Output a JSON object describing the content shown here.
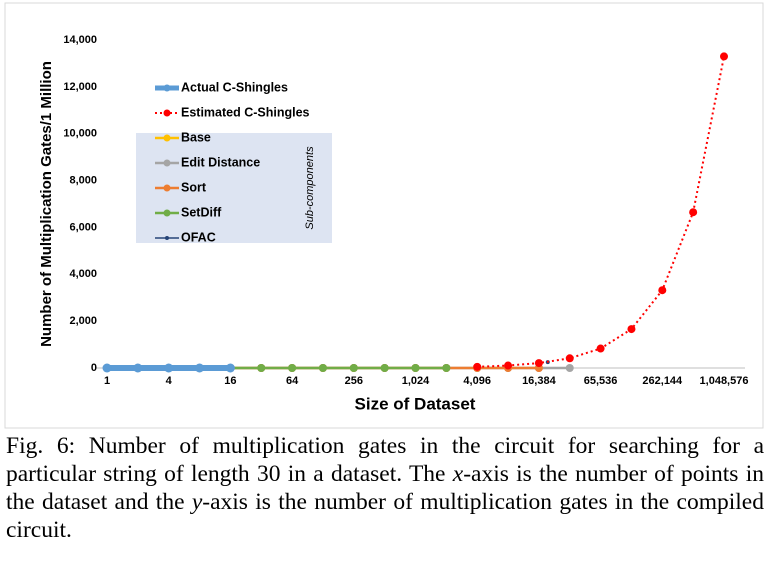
{
  "chart_data": {
    "type": "line",
    "x_label": "Size of Dataset",
    "y_label": "Number of Multiplication Gates/1 Million",
    "x_scale": "log2",
    "xlim": [
      1,
      1048576
    ],
    "xticks": [
      1,
      4,
      16,
      64,
      256,
      {
        "value": 1024,
        "label": "1,024"
      },
      {
        "value": 4096,
        "label": "4,096"
      },
      {
        "value": 16384,
        "label": "16,384"
      },
      {
        "value": 65536,
        "label": "65,536"
      },
      {
        "value": 262144,
        "label": "262,144"
      },
      {
        "value": 1048576,
        "label": "1,048,576"
      }
    ],
    "ylim": [
      0,
      14000
    ],
    "yticks": [
      0,
      {
        "value": 2000,
        "label": "2,000"
      },
      {
        "value": 4000,
        "label": "4,000"
      },
      {
        "value": 6000,
        "label": "6,000"
      },
      {
        "value": 8000,
        "label": "8,000"
      },
      {
        "value": 10000,
        "label": "10,000"
      },
      {
        "value": 12000,
        "label": "12,000"
      },
      {
        "value": 14000,
        "label": "14,000"
      }
    ],
    "legend_position": "upper left",
    "legend_note": "Sub-components",
    "series": [
      {
        "name": "Actual C-Shingles",
        "color": "#5b9bd5",
        "x": [
          1,
          2,
          4,
          8,
          16
        ],
        "values": [
          0,
          0,
          0,
          0,
          0
        ]
      },
      {
        "name": "Estimated C-Shingles",
        "color": "#ff0000",
        "x": [
          4096,
          8192,
          16384,
          32768,
          65536,
          131072,
          262144,
          524288,
          1048576
        ],
        "values": [
          50,
          105,
          210,
          415,
          830,
          1660,
          3320,
          6650,
          13300
        ]
      },
      {
        "name": "Base",
        "color": "#ffc000",
        "x": [
          1,
          2,
          4,
          8,
          16
        ],
        "values": [
          0,
          0,
          0,
          0,
          0
        ]
      },
      {
        "name": "Edit Distance",
        "color": "#a5a5a5",
        "x": [
          1,
          2,
          4,
          8,
          16,
          32,
          64,
          128,
          256,
          512,
          1024,
          2048,
          4096,
          8192,
          16384,
          32768
        ],
        "values": [
          0,
          0,
          0,
          0,
          0,
          0,
          0,
          0,
          0,
          0,
          0,
          0,
          0,
          0,
          0,
          0
        ]
      },
      {
        "name": "Sort",
        "color": "#ed7d31",
        "x": [
          1,
          2,
          4,
          8,
          16,
          32,
          64,
          128,
          256,
          512,
          1024,
          2048,
          4096,
          8192,
          16384
        ],
        "values": [
          0,
          0,
          0,
          0,
          0,
          0,
          0,
          0,
          0,
          0,
          0,
          0,
          0,
          0,
          0
        ]
      },
      {
        "name": "SetDiff",
        "color": "#70ad47",
        "x": [
          1,
          2,
          4,
          8,
          16,
          32,
          64,
          128,
          256,
          512,
          1024,
          2048
        ],
        "values": [
          0,
          0,
          0,
          0,
          0,
          0,
          0,
          0,
          0,
          0,
          0,
          0
        ]
      },
      {
        "name": "OFAC",
        "color": "#264478",
        "x": [
          20000
        ],
        "values": [
          250
        ]
      }
    ]
  },
  "caption": [
    "Fig. 6: Number of multiplication gates in the circuit for searching for a particular string of length 30 in a dataset. The ",
    "x",
    "-axis is the number of points in the dataset and the ",
    "y",
    "-axis is the number of multiplication gates in the compiled circuit."
  ]
}
